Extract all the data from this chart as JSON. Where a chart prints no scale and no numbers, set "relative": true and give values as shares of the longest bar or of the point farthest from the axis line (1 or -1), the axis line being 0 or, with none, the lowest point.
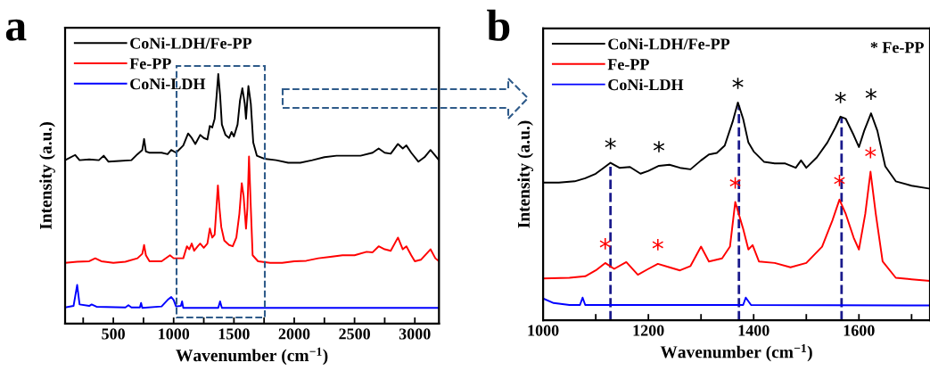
{
  "chart_data": [
    {
      "type": "line",
      "title": "a",
      "xlabel": "Wavenumber (cm$^{−1}$)",
      "ylabel": "Intensity (a.u.)",
      "relative": true,
      "legend": "top left",
      "tick_labels": "x",
      "line_style": "solid",
      "marker": "none",
      "xlim": [
        100,
        3200
      ],
      "xticks": [
        {
          "value": 250,
          "label": null
        },
        500,
        {
          "value": 750,
          "label": null
        },
        1000,
        {
          "value": 1250,
          "label": null
        },
        1500,
        {
          "value": 1750,
          "label": null
        },
        2000,
        {
          "value": 2250,
          "label": null
        },
        2500,
        {
          "value": 2750,
          "label": null
        },
        3000
      ],
      "series": [
        {
          "name": "CoNi-LDH/Fe-PP",
          "color": "#000000",
          "x": [
            100,
            184,
            220,
            300,
            380,
            420,
            460,
            550,
            650,
            700,
            740,
            755,
            770,
            800,
            900,
            950,
            980,
            1020,
            1080,
            1120,
            1150,
            1180,
            1220,
            1250,
            1280,
            1300,
            1320,
            1340,
            1355,
            1370,
            1385,
            1400,
            1430,
            1460,
            1480,
            1500,
            1530,
            1550,
            1570,
            1590,
            1600,
            1620,
            1640,
            1660,
            1690,
            1750,
            1850,
            1950,
            2050,
            2150,
            2250,
            2350,
            2450,
            2550,
            2650,
            2700,
            2750,
            2800,
            2860,
            2900,
            2930,
            2970,
            3030,
            3080,
            3130,
            3170,
            3200
          ],
          "values": [
            0.655,
            0.676,
            0.655,
            0.658,
            0.655,
            0.673,
            0.649,
            0.652,
            0.655,
            0.679,
            0.696,
            0.74,
            0.69,
            0.685,
            0.685,
            0.679,
            0.696,
            0.685,
            0.714,
            0.762,
            0.744,
            0.72,
            0.756,
            0.744,
            0.738,
            0.792,
            0.786,
            0.821,
            0.905,
            1.0,
            0.917,
            0.798,
            0.756,
            0.744,
            0.768,
            0.75,
            0.798,
            0.893,
            0.943,
            0.881,
            0.821,
            0.952,
            0.881,
            0.726,
            0.673,
            0.661,
            0.655,
            0.645,
            0.645,
            0.655,
            0.667,
            0.673,
            0.673,
            0.673,
            0.685,
            0.702,
            0.685,
            0.681,
            0.72,
            0.702,
            0.714,
            0.685,
            0.649,
            0.667,
            0.696,
            0.673,
            0.655
          ]
        },
        {
          "name": "Fe-PP",
          "color": "#ff0000",
          "x": [
            100,
            200,
            300,
            350,
            400,
            500,
            600,
            700,
            740,
            755,
            770,
            800,
            900,
            970,
            1000,
            1080,
            1110,
            1130,
            1150,
            1170,
            1200,
            1220,
            1250,
            1280,
            1300,
            1320,
            1340,
            1355,
            1367,
            1380,
            1395,
            1420,
            1460,
            1490,
            1520,
            1545,
            1565,
            1580,
            1600,
            1612,
            1625,
            1640,
            1655,
            1700,
            1800,
            1900,
            2000,
            2100,
            2200,
            2300,
            2400,
            2500,
            2600,
            2650,
            2700,
            2750,
            2800,
            2860,
            2900,
            2930,
            2970,
            3000,
            3050,
            3130,
            3170,
            3200
          ],
          "values": [
            0.244,
            0.248,
            0.25,
            0.262,
            0.25,
            0.244,
            0.248,
            0.262,
            0.28,
            0.315,
            0.274,
            0.25,
            0.25,
            0.274,
            0.262,
            0.262,
            0.31,
            0.298,
            0.321,
            0.292,
            0.31,
            0.321,
            0.304,
            0.321,
            0.381,
            0.345,
            0.357,
            0.464,
            0.554,
            0.464,
            0.387,
            0.333,
            0.315,
            0.31,
            0.345,
            0.44,
            0.563,
            0.512,
            0.381,
            0.464,
            0.67,
            0.464,
            0.274,
            0.25,
            0.244,
            0.244,
            0.25,
            0.252,
            0.262,
            0.268,
            0.274,
            0.274,
            0.288,
            0.286,
            0.31,
            0.298,
            0.292,
            0.345,
            0.298,
            0.31,
            0.274,
            0.25,
            0.256,
            0.298,
            0.262,
            0.25
          ]
        },
        {
          "name": "CoNi-LDH",
          "color": "#0000ff",
          "x": [
            100,
            170,
            200,
            220,
            300,
            320,
            360,
            600,
            625,
            650,
            720,
            730,
            740,
            900,
            950,
            980,
            1000,
            1020,
            1060,
            1070,
            1080,
            1370,
            1385,
            1400,
            1700,
            2500,
            3200
          ],
          "values": [
            0.065,
            0.071,
            0.155,
            0.077,
            0.071,
            0.077,
            0.068,
            0.065,
            0.074,
            0.065,
            0.065,
            0.083,
            0.063,
            0.069,
            0.095,
            0.107,
            0.095,
            0.069,
            0.071,
            0.089,
            0.063,
            0.063,
            0.089,
            0.063,
            0.063,
            0.063,
            0.063
          ]
        }
      ]
    },
    {
      "type": "line",
      "title": "b",
      "xlabel": "Wavenumber (cm$^{−1}$)",
      "ylabel": "Intensity (a.u.)",
      "relative": true,
      "legend": "top left",
      "tick_labels": "x",
      "line_style": "solid",
      "marker": "none",
      "xlim": [
        1000,
        1735
      ],
      "xticks": [
        1000,
        {
          "value": 1100,
          "label": null
        },
        1200,
        {
          "value": 1300,
          "label": null
        },
        1400,
        {
          "value": 1500,
          "label": null
        },
        1600,
        {
          "value": 1700,
          "label": null
        }
      ],
      "ref_lines": [
        {
          "axis": "x",
          "value": 1128,
          "color": "#1a1a8c",
          "line_style": "dashed"
        },
        {
          "axis": "x",
          "value": 1372,
          "color": "#1a1a8c",
          "line_style": "dashed"
        },
        {
          "axis": "x",
          "value": 1567,
          "color": "#1a1a8c",
          "line_style": "dashed"
        }
      ],
      "annotations": [
        "* Fe-PP",
        {
          "text": "*",
          "x": 1128,
          "y": 0.723
        },
        {
          "text": "*",
          "x": 1220,
          "y": 0.709
        },
        {
          "text": "*",
          "x": 1370,
          "y": 1.0
        },
        {
          "text": "*",
          "x": 1565,
          "y": 0.935
        },
        {
          "text": "*",
          "x": 1623,
          "y": 0.95
        },
        {
          "text": "*",
          "x": 1118,
          "y": 0.263
        },
        {
          "text": "*",
          "x": 1218,
          "y": 0.259
        },
        {
          "text": "*",
          "x": 1365,
          "y": 0.543
        },
        {
          "text": "*",
          "x": 1563,
          "y": 0.554
        },
        {
          "text": "*",
          "x": 1622,
          "y": 0.682
        }
      ],
      "series": [
        {
          "name": "CoNi-LDH/Fe-PP",
          "color": "#000000",
          "x": [
            1000,
            1030,
            1060,
            1080,
            1100,
            1115,
            1128,
            1145,
            1165,
            1185,
            1200,
            1220,
            1240,
            1260,
            1280,
            1300,
            1315,
            1330,
            1345,
            1360,
            1370,
            1380,
            1390,
            1400,
            1420,
            1440,
            1460,
            1480,
            1490,
            1500,
            1520,
            1540,
            1555,
            1565,
            1575,
            1590,
            1600,
            1610,
            1623,
            1635,
            1650,
            1670,
            1700,
            1735
          ],
          "values": [
            0.632,
            0.632,
            0.638,
            0.652,
            0.673,
            0.7,
            0.723,
            0.7,
            0.704,
            0.673,
            0.686,
            0.709,
            0.714,
            0.7,
            0.693,
            0.734,
            0.761,
            0.768,
            0.802,
            0.911,
            1.0,
            0.925,
            0.816,
            0.775,
            0.727,
            0.72,
            0.72,
            0.7,
            0.734,
            0.7,
            0.748,
            0.816,
            0.884,
            0.935,
            0.925,
            0.85,
            0.795,
            0.87,
            0.95,
            0.87,
            0.707,
            0.638,
            0.618,
            0.604
          ]
        },
        {
          "name": "Fe-PP",
          "color": "#ff0000",
          "x": [
            1000,
            1050,
            1080,
            1100,
            1118,
            1135,
            1158,
            1180,
            1200,
            1218,
            1240,
            1260,
            1280,
            1300,
            1315,
            1340,
            1355,
            1365,
            1380,
            1390,
            1398,
            1410,
            1440,
            1470,
            1500,
            1530,
            1550,
            1563,
            1575,
            1590,
            1600,
            1612,
            1622,
            1632,
            1645,
            1670,
            1700,
            1735
          ],
          "values": [
            0.192,
            0.195,
            0.202,
            0.229,
            0.263,
            0.236,
            0.267,
            0.209,
            0.236,
            0.259,
            0.243,
            0.229,
            0.249,
            0.338,
            0.27,
            0.284,
            0.338,
            0.543,
            0.42,
            0.325,
            0.345,
            0.27,
            0.263,
            0.243,
            0.263,
            0.338,
            0.461,
            0.554,
            0.488,
            0.379,
            0.325,
            0.488,
            0.682,
            0.488,
            0.27,
            0.195,
            0.188,
            0.181
          ]
        },
        {
          "name": "CoNi-LDH",
          "color": "#0000ff",
          "x": [
            1000,
            1020,
            1050,
            1070,
            1075,
            1080,
            1380,
            1385,
            1395,
            1735
          ],
          "values": [
            0.1,
            0.079,
            0.07,
            0.07,
            0.104,
            0.07,
            0.07,
            0.104,
            0.07,
            0.068
          ]
        }
      ]
    }
  ]
}
